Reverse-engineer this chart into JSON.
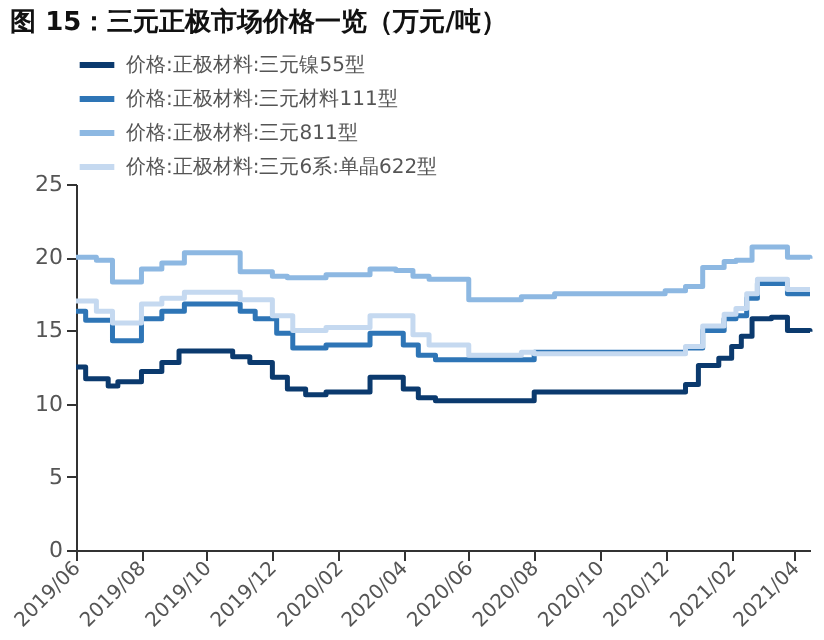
{
  "chart_data": {
    "type": "step",
    "title": "图 15：三元正极市场价格一览（万元/吨）",
    "xlim": [
      "2019-06-01",
      "2021-04-15"
    ],
    "xticks": [
      {
        "value": "2019-06",
        "label": "2019/06"
      },
      {
        "value": "2019-08",
        "label": "2019/08"
      },
      {
        "value": "2019-10",
        "label": "2019/10"
      },
      {
        "value": "2019-12",
        "label": "2019/12"
      },
      {
        "value": "2020-02",
        "label": "2020/02"
      },
      {
        "value": "2020-04",
        "label": "2020/04"
      },
      {
        "value": "2020-06",
        "label": "2020/06"
      },
      {
        "value": "2020-08",
        "label": "2020/08"
      },
      {
        "value": "2020-10",
        "label": "2020/10"
      },
      {
        "value": "2020-12",
        "label": "2020/12"
      },
      {
        "value": "2021-02",
        "label": "2021/02"
      },
      {
        "value": "2021-04",
        "label": "2021/04"
      }
    ],
    "ylim": [
      0,
      25
    ],
    "yticks": [
      0,
      5,
      10,
      15,
      20,
      25
    ],
    "grid": false,
    "legend": "top",
    "line_style": "solid",
    "marker": "none",
    "series": [
      {
        "name": "价格:正极材料:三元镍55型",
        "color": "#0b3a6e",
        "x": [
          "2019-06-01",
          "2019-06-10",
          "2019-07-01",
          "2019-07-10",
          "2019-08-01",
          "2019-08-20",
          "2019-09-05",
          "2019-10-15",
          "2019-10-25",
          "2019-11-10",
          "2019-12-01",
          "2019-12-15",
          "2020-01-01",
          "2020-01-20",
          "2020-02-20",
          "2020-03-01",
          "2020-03-20",
          "2020-04-01",
          "2020-04-15",
          "2020-05-01",
          "2020-07-20",
          "2020-08-01",
          "2020-12-01",
          "2020-12-20",
          "2021-01-01",
          "2021-01-20",
          "2021-02-01",
          "2021-02-10",
          "2021-02-20",
          "2021-03-10",
          "2021-03-25",
          "2021-04-15"
        ],
        "values": [
          12.5,
          11.7,
          11.2,
          11.5,
          12.2,
          12.8,
          13.6,
          13.6,
          13.2,
          12.8,
          11.8,
          11.0,
          10.6,
          10.8,
          10.8,
          11.8,
          11.8,
          11.0,
          10.4,
          10.2,
          10.2,
          10.8,
          10.8,
          11.3,
          12.6,
          13.1,
          13.9,
          14.6,
          15.8,
          15.9,
          15.0,
          14.9
        ]
      },
      {
        "name": "价格:正极材料:三元材料111型",
        "color": "#2e75b6",
        "x": [
          "2019-06-01",
          "2019-06-10",
          "2019-07-05",
          "2019-08-01",
          "2019-08-20",
          "2019-09-10",
          "2019-10-20",
          "2019-11-01",
          "2019-11-15",
          "2019-12-05",
          "2019-12-20",
          "2020-01-20",
          "2020-02-20",
          "2020-03-01",
          "2020-03-25",
          "2020-04-01",
          "2020-04-15",
          "2020-05-01",
          "2020-07-20",
          "2020-08-01",
          "2020-12-01",
          "2020-12-20",
          "2021-01-05",
          "2021-01-25",
          "2021-02-05",
          "2021-02-15",
          "2021-02-25",
          "2021-03-15",
          "2021-03-25",
          "2021-04-15"
        ],
        "values": [
          16.3,
          15.7,
          14.3,
          15.8,
          16.3,
          16.8,
          16.8,
          16.3,
          15.8,
          14.8,
          13.8,
          14.0,
          14.0,
          14.8,
          14.8,
          14.0,
          13.3,
          13.0,
          13.0,
          13.5,
          13.5,
          13.8,
          15.0,
          15.8,
          16.0,
          17.2,
          18.2,
          18.2,
          17.5,
          17.5
        ]
      },
      {
        "name": "价格:正极材料:三元811型",
        "color": "#8db8e2",
        "x": [
          "2019-06-01",
          "2019-06-20",
          "2019-07-05",
          "2019-08-01",
          "2019-08-20",
          "2019-09-10",
          "2019-10-20",
          "2019-11-01",
          "2019-12-01",
          "2019-12-15",
          "2020-01-20",
          "2020-02-20",
          "2020-03-01",
          "2020-03-25",
          "2020-04-10",
          "2020-04-25",
          "2020-06-01",
          "2020-07-20",
          "2020-08-20",
          "2020-12-01",
          "2020-12-20",
          "2021-01-05",
          "2021-01-25",
          "2021-02-05",
          "2021-02-20",
          "2021-03-10",
          "2021-03-25",
          "2021-04-15"
        ],
        "values": [
          20.0,
          19.8,
          18.3,
          19.2,
          19.6,
          20.3,
          20.3,
          19.0,
          18.7,
          18.6,
          18.8,
          18.8,
          19.2,
          19.1,
          18.7,
          18.5,
          17.1,
          17.3,
          17.5,
          17.7,
          18.0,
          19.3,
          19.7,
          19.8,
          20.7,
          20.7,
          20.0,
          19.9
        ]
      },
      {
        "name": "价格:正极材料:三元6系:单晶622型",
        "color": "#c5d9f0",
        "x": [
          "2019-06-01",
          "2019-06-20",
          "2019-07-05",
          "2019-08-01",
          "2019-08-20",
          "2019-09-10",
          "2019-10-20",
          "2019-11-01",
          "2019-12-01",
          "2019-12-20",
          "2020-01-20",
          "2020-02-20",
          "2020-03-01",
          "2020-03-25",
          "2020-04-10",
          "2020-04-25",
          "2020-06-01",
          "2020-07-20",
          "2020-08-01",
          "2020-12-01",
          "2020-12-20",
          "2021-01-05",
          "2021-01-25",
          "2021-02-05",
          "2021-02-15",
          "2021-02-25",
          "2021-03-15",
          "2021-03-25",
          "2021-04-15"
        ],
        "values": [
          17.0,
          16.3,
          15.5,
          16.8,
          17.2,
          17.6,
          17.6,
          17.1,
          16.0,
          15.0,
          15.2,
          15.2,
          16.0,
          16.0,
          14.7,
          14.0,
          13.3,
          13.5,
          13.4,
          13.4,
          13.9,
          15.3,
          16.1,
          16.5,
          17.5,
          18.5,
          18.5,
          17.8,
          17.8
        ]
      }
    ]
  }
}
